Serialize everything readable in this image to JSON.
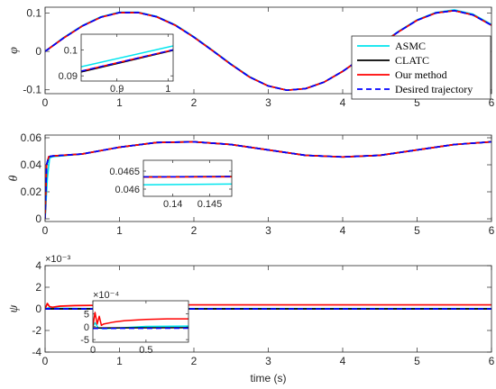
{
  "chart_data": {
    "type": "line",
    "xlabel": "time (s)",
    "legend": {
      "placement": "top-right",
      "entries": [
        {
          "label": "ASMC",
          "color": "#00E5EE",
          "dash": "solid"
        },
        {
          "label": "CLATC",
          "color": "#000000",
          "dash": "solid"
        },
        {
          "label": "Our method",
          "color": "#FF0000",
          "dash": "solid"
        },
        {
          "label": "Desired trajectory",
          "color": "#0000FF",
          "dash": "dashed"
        }
      ]
    },
    "subplots": [
      {
        "ylabel": "φ",
        "xlim": [
          0,
          6
        ],
        "ylim": [
          -0.11,
          0.115
        ],
        "xticks": [
          "0",
          "1",
          "2",
          "3",
          "4",
          "5",
          "6"
        ],
        "yticks": [
          {
            "v": 0.1,
            "t": "0.1"
          },
          {
            "v": 0,
            "t": "0"
          },
          {
            "v": -0.1,
            "t": "-0.1"
          }
        ],
        "series": [
          {
            "name": "ASMC",
            "x": [
              0,
              0.25,
              0.5,
              0.75,
              1,
              1.25,
              1.5,
              1.75,
              2,
              2.25,
              2.5,
              2.75,
              3,
              3.25,
              3.5,
              3.75,
              4,
              4.25,
              4.5,
              4.75,
              5,
              5.25,
              5.5,
              5.75,
              6
            ],
            "y": [
              0,
              0.036,
              0.067,
              0.09,
              0.102,
              0.102,
              0.091,
              0.069,
              0.038,
              0.003,
              -0.033,
              -0.066,
              -0.09,
              -0.101,
              -0.097,
              -0.08,
              -0.052,
              -0.018,
              0.018,
              0.052,
              0.082,
              0.101,
              0.108,
              0.097,
              0.07
            ]
          },
          {
            "name": "CLATC",
            "x": [
              0,
              0.25,
              0.5,
              0.75,
              1,
              1.25,
              1.5,
              1.75,
              2,
              2.25,
              2.5,
              2.75,
              3,
              3.25,
              3.5,
              3.75,
              4,
              4.25,
              4.5,
              4.75,
              5,
              5.25,
              5.5,
              5.75,
              6
            ],
            "y": [
              0,
              0.035,
              0.066,
              0.089,
              0.101,
              0.101,
              0.09,
              0.068,
              0.037,
              0.002,
              -0.034,
              -0.067,
              -0.09,
              -0.101,
              -0.097,
              -0.08,
              -0.052,
              -0.018,
              0.018,
              0.051,
              0.081,
              0.1,
              0.106,
              0.095,
              0.068
            ]
          },
          {
            "name": "Our method",
            "x": [
              0,
              0.25,
              0.5,
              0.75,
              1,
              1.25,
              1.5,
              1.75,
              2,
              2.25,
              2.5,
              2.75,
              3,
              3.25,
              3.5,
              3.75,
              4,
              4.25,
              4.5,
              4.75,
              5,
              5.25,
              5.5,
              5.75,
              6
            ],
            "y": [
              0,
              0.035,
              0.066,
              0.089,
              0.101,
              0.101,
              0.09,
              0.068,
              0.037,
              0.002,
              -0.034,
              -0.067,
              -0.09,
              -0.101,
              -0.097,
              -0.08,
              -0.052,
              -0.018,
              0.018,
              0.051,
              0.081,
              0.1,
              0.106,
              0.095,
              0.068
            ]
          },
          {
            "name": "Desired trajectory",
            "x": [
              0,
              0.25,
              0.5,
              0.75,
              1,
              1.25,
              1.5,
              1.75,
              2,
              2.25,
              2.5,
              2.75,
              3,
              3.25,
              3.5,
              3.75,
              4,
              4.25,
              4.5,
              4.75,
              5,
              5.25,
              5.5,
              5.75,
              6
            ],
            "y": [
              0,
              0.035,
              0.066,
              0.089,
              0.101,
              0.101,
              0.09,
              0.068,
              0.037,
              0.002,
              -0.034,
              -0.067,
              -0.09,
              -0.101,
              -0.097,
              -0.08,
              -0.052,
              -0.018,
              0.018,
              0.051,
              0.081,
              0.1,
              0.106,
              0.095,
              0.068
            ]
          }
        ],
        "inset": {
          "xlim": [
            0.83,
            1.01
          ],
          "ylim": [
            0.088,
            0.106
          ],
          "xticks": [
            {
              "v": 0.9,
              "t": "0.9"
            },
            {
              "v": 1,
              "t": "1"
            }
          ],
          "yticks": [
            {
              "v": 0.1,
              "t": "0.1"
            },
            {
              "v": 0.09,
              "t": "0.09"
            }
          ],
          "series": [
            {
              "name": "ASMC",
              "x": [
                0.83,
                1.01
              ],
              "y": [
                0.0935,
                0.1015
              ]
            },
            {
              "name": "CLATC",
              "x": [
                0.83,
                1.01
              ],
              "y": [
                0.0915,
                0.0998
              ]
            },
            {
              "name": "Our method",
              "x": [
                0.83,
                1.01
              ],
              "y": [
                0.0918,
                0.1
              ]
            },
            {
              "name": "Desired trajectory",
              "x": [
                0.83,
                1.01
              ],
              "y": [
                0.0918,
                0.1
              ]
            }
          ]
        }
      },
      {
        "ylabel": "θ",
        "xlim": [
          0,
          6
        ],
        "ylim": [
          -0.002,
          0.062
        ],
        "xticks": [
          "0",
          "1",
          "2",
          "3",
          "4",
          "5",
          "6"
        ],
        "yticks": [
          {
            "v": 0.06,
            "t": "0.06"
          },
          {
            "v": 0.04,
            "t": "0.04"
          },
          {
            "v": 0.02,
            "t": "0.02"
          },
          {
            "v": 0,
            "t": "0"
          }
        ],
        "series": [
          {
            "name": "ASMC",
            "x": [
              0,
              0.03,
              0.06,
              0.1,
              0.5,
              1,
              1.5,
              2,
              2.5,
              3,
              3.5,
              4,
              4.5,
              5,
              5.5,
              6
            ],
            "y": [
              0,
              0.03,
              0.045,
              0.046,
              0.048,
              0.053,
              0.0565,
              0.057,
              0.055,
              0.051,
              0.047,
              0.0458,
              0.047,
              0.051,
              0.055,
              0.057
            ]
          },
          {
            "name": "CLATC",
            "x": [
              0,
              0.02,
              0.05,
              0.1,
              0.5,
              1,
              1.5,
              2,
              2.5,
              3,
              3.5,
              4,
              4.5,
              5,
              5.5,
              6
            ],
            "y": [
              0,
              0.04,
              0.046,
              0.0465,
              0.048,
              0.053,
              0.0565,
              0.057,
              0.055,
              0.051,
              0.047,
              0.0458,
              0.047,
              0.051,
              0.055,
              0.057
            ]
          },
          {
            "name": "Our method",
            "x": [
              0,
              0.02,
              0.05,
              0.1,
              0.5,
              1,
              1.5,
              2,
              2.5,
              3,
              3.5,
              4,
              4.5,
              5,
              5.5,
              6
            ],
            "y": [
              0,
              0.04,
              0.046,
              0.0465,
              0.048,
              0.053,
              0.0565,
              0.057,
              0.055,
              0.051,
              0.047,
              0.0458,
              0.047,
              0.051,
              0.055,
              0.057
            ]
          },
          {
            "name": "Desired trajectory",
            "x": [
              0,
              0.02,
              0.05,
              0.1,
              0.5,
              1,
              1.5,
              2,
              2.5,
              3,
              3.5,
              4,
              4.5,
              5,
              5.5,
              6
            ],
            "y": [
              0,
              0.04,
              0.046,
              0.0465,
              0.048,
              0.053,
              0.0565,
              0.057,
              0.055,
              0.051,
              0.047,
              0.0458,
              0.047,
              0.051,
              0.055,
              0.057
            ]
          }
        ],
        "inset": {
          "xlim": [
            0.136,
            0.148
          ],
          "ylim": [
            0.0458,
            0.0468
          ],
          "xticks": [
            {
              "v": 0.14,
              "t": "0.14"
            },
            {
              "v": 0.145,
              "t": "0.145"
            }
          ],
          "yticks": [
            {
              "v": 0.0465,
              "t": "0.0465"
            },
            {
              "v": 0.046,
              "t": "0.046"
            }
          ],
          "series": [
            {
              "name": "ASMC",
              "x": [
                0.136,
                0.148
              ],
              "y": [
                0.04612,
                0.04614
              ]
            },
            {
              "name": "CLATC",
              "x": [
                0.136,
                0.148
              ],
              "y": [
                0.04634,
                0.04635
              ]
            },
            {
              "name": "Our method",
              "x": [
                0.136,
                0.148
              ],
              "y": [
                0.04633,
                0.04634
              ]
            },
            {
              "name": "Desired trajectory",
              "x": [
                0.136,
                0.148
              ],
              "y": [
                0.04634,
                0.04635
              ]
            }
          ]
        }
      },
      {
        "ylabel": "ψ",
        "exponent": "×10⁻³",
        "xlim": [
          0,
          6
        ],
        "ylim": [
          -4,
          4
        ],
        "xticks": [
          "0",
          "1",
          "2",
          "3",
          "4",
          "5",
          "6"
        ],
        "yticks": [
          {
            "v": 4,
            "t": "4"
          },
          {
            "v": 2,
            "t": "2"
          },
          {
            "v": 0,
            "t": "0"
          },
          {
            "v": -2,
            "t": "-2"
          },
          {
            "v": -4,
            "t": "-4"
          }
        ],
        "series": [
          {
            "name": "ASMC",
            "x": [
              0,
              0.05,
              0.2,
              0.5,
              1,
              2,
              3,
              4,
              5,
              6
            ],
            "y": [
              0,
              0.1,
              0.05,
              0.02,
              0.02,
              0.02,
              0.02,
              0.02,
              0.02,
              0.02
            ]
          },
          {
            "name": "CLATC",
            "x": [
              0,
              6
            ],
            "y": [
              0,
              0
            ]
          },
          {
            "name": "Our method",
            "x": [
              0,
              0.03,
              0.06,
              0.1,
              0.2,
              0.4,
              0.7,
              1,
              1.5,
              2,
              3,
              4,
              5,
              6
            ],
            "y": [
              0,
              0.5,
              0.2,
              0.15,
              0.25,
              0.3,
              0.33,
              0.35,
              0.36,
              0.37,
              0.37,
              0.37,
              0.37,
              0.37
            ]
          },
          {
            "name": "Desired trajectory",
            "x": [
              0,
              6
            ],
            "y": [
              0,
              0
            ]
          }
        ],
        "inset": {
          "exponent": "×10⁻⁴",
          "xlim": [
            0,
            0.9
          ],
          "ylim": [
            -6,
            10
          ],
          "xticks": [
            {
              "v": 0,
              "t": "0"
            },
            {
              "v": 0.5,
              "t": "0.5"
            }
          ],
          "yticks": [
            {
              "v": 5,
              "t": "5"
            },
            {
              "v": 0,
              "t": "0"
            },
            {
              "v": -5,
              "t": "-5"
            }
          ],
          "series": [
            {
              "name": "ASMC",
              "x": [
                0,
                0.02,
                0.05,
                0.1,
                0.3,
                0.5,
                0.9
              ],
              "y": [
                0,
                1.5,
                -0.5,
                -0.8,
                -0.4,
                0.1,
                0.2
              ]
            },
            {
              "name": "CLATC",
              "x": [
                0,
                0.9
              ],
              "y": [
                -0.5,
                -0.4
              ]
            },
            {
              "name": "Our method",
              "x": [
                0,
                0.02,
                0.04,
                0.06,
                0.08,
                0.1,
                0.2,
                0.3,
                0.5,
                0.7,
                0.9
              ],
              "y": [
                0,
                5.5,
                1,
                4,
                0.5,
                1,
                1.8,
                2.3,
                2.8,
                3,
                3
              ]
            },
            {
              "name": "Desired trajectory",
              "x": [
                0,
                0.9
              ],
              "y": [
                -0.7,
                -0.6
              ]
            }
          ]
        }
      }
    ]
  }
}
